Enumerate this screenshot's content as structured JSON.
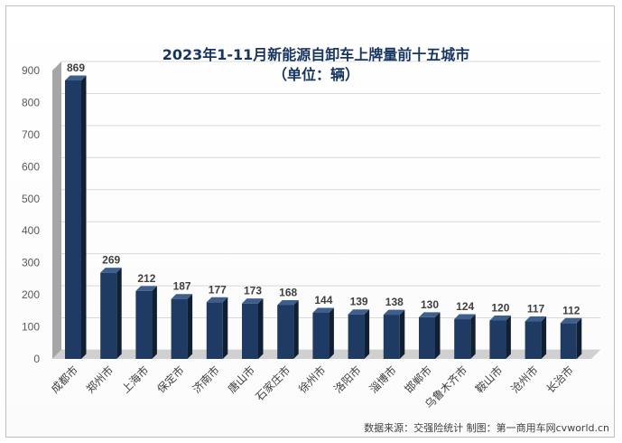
{
  "chart_data": {
    "type": "bar",
    "title": "2023年1-11月新能源自卸车上牌量前十五城市",
    "subtitle": "（单位：辆）",
    "categories": [
      "成都市",
      "郑州市",
      "上海市",
      "保定市",
      "济南市",
      "唐山市",
      "石家庄市",
      "徐州市",
      "洛阳市",
      "淄博市",
      "邯郸市",
      "乌鲁木齐市",
      "鞍山市",
      "沧州市",
      "长治市"
    ],
    "values": [
      869,
      269,
      212,
      187,
      177,
      173,
      168,
      144,
      139,
      138,
      130,
      124,
      120,
      117,
      112
    ],
    "ylim": [
      0,
      900
    ],
    "yticks": [
      0,
      100,
      200,
      300,
      400,
      500,
      600,
      700,
      800,
      900
    ],
    "grid": true,
    "legend": "none",
    "source": "数据来源：交强险统计 制图：第一商用车网cvworld.cn",
    "colors": {
      "bar_front": "#1f3b63",
      "bar_side": "#111f33",
      "bar_top": "#3e5f8d",
      "wall": "#a6a6a6",
      "wall_side": "#d0d0d0",
      "grid": "#d9d9d9"
    }
  }
}
